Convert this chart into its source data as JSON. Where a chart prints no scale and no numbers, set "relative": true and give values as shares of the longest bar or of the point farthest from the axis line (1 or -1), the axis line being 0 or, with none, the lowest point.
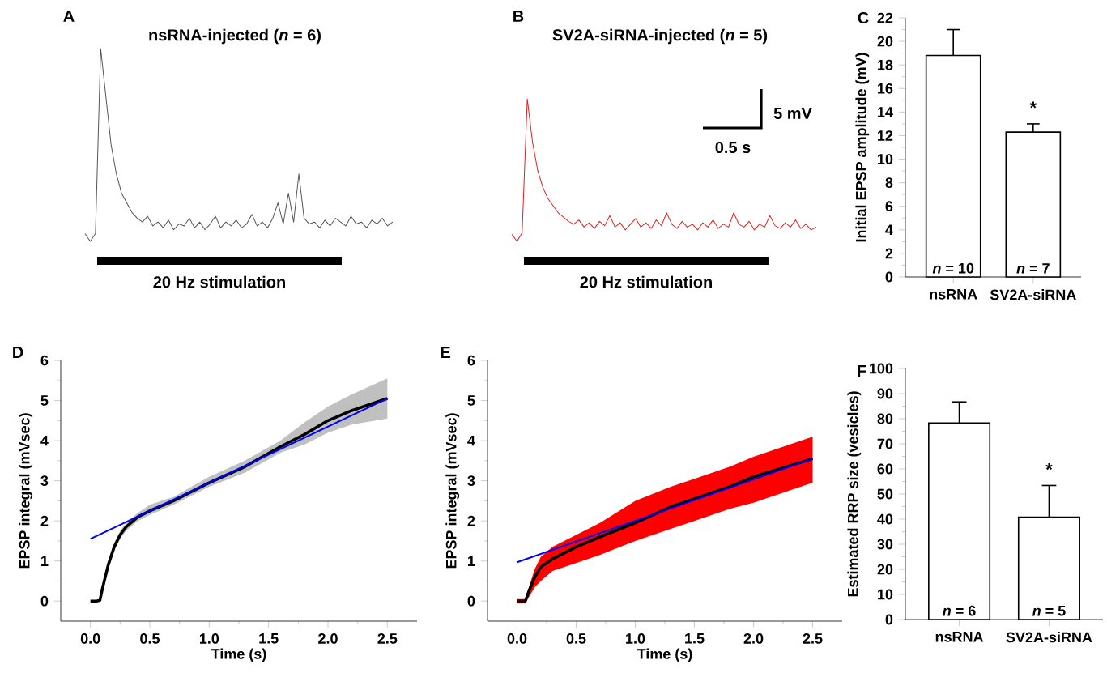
{
  "chart_data": [
    {
      "type": "line",
      "relative": true,
      "title": "nsRNA-injected (*n* = 6)",
      "color": "#555555",
      "annotations": [
        "A",
        "20 Hz stimulation"
      ],
      "categories": [
        null,
        null,
        null,
        null,
        null,
        null,
        null,
        null,
        null,
        null,
        null,
        null,
        null,
        null,
        null,
        null,
        null,
        null,
        null,
        null,
        null,
        null,
        null,
        null,
        null,
        null,
        null,
        null,
        null,
        null,
        null,
        null,
        null,
        null,
        null,
        null,
        null,
        null,
        null,
        null,
        null,
        null,
        null,
        null,
        null,
        null,
        null,
        null,
        null,
        null,
        null,
        null,
        null,
        null,
        null,
        null,
        null,
        null,
        null,
        null
      ],
      "values": [
        0.04,
        0.0,
        0.04,
        1.0,
        0.75,
        0.5,
        0.35,
        0.25,
        0.2,
        0.15,
        0.12,
        0.1,
        0.13,
        0.08,
        0.1,
        0.07,
        0.11,
        0.06,
        0.09,
        0.08,
        0.12,
        0.07,
        0.1,
        0.06,
        0.09,
        0.13,
        0.07,
        0.1,
        0.08,
        0.11,
        0.07,
        0.09,
        0.14,
        0.08,
        0.1,
        0.07,
        0.12,
        0.2,
        0.09,
        0.25,
        0.1,
        0.35,
        0.12,
        0.09,
        0.1,
        0.07,
        0.11,
        0.08,
        0.12,
        0.1,
        0.08,
        0.13,
        0.09,
        0.1,
        0.07,
        0.11,
        0.09,
        0.12,
        0.08,
        0.1
      ]
    },
    {
      "type": "line",
      "relative": true,
      "title": "SV2A-siRNA-injected (*n* = 5)",
      "color": "#e02020",
      "annotations": [
        "B",
        "20 Hz stimulation",
        "5 mV",
        "0.5 s"
      ],
      "categories": [
        null,
        null,
        null,
        null,
        null,
        null,
        null,
        null,
        null,
        null,
        null,
        null,
        null,
        null,
        null,
        null,
        null,
        null,
        null,
        null,
        null,
        null,
        null,
        null,
        null,
        null,
        null,
        null,
        null,
        null,
        null,
        null,
        null,
        null,
        null,
        null,
        null,
        null,
        null,
        null,
        null,
        null,
        null,
        null,
        null,
        null,
        null,
        null,
        null,
        null,
        null,
        null,
        null,
        null,
        null,
        null,
        null,
        null,
        null,
        null
      ],
      "values": [
        0.05,
        0.0,
        0.06,
        1.0,
        0.7,
        0.5,
        0.38,
        0.3,
        0.25,
        0.2,
        0.17,
        0.14,
        0.12,
        0.15,
        0.1,
        0.13,
        0.09,
        0.14,
        0.11,
        0.18,
        0.1,
        0.13,
        0.08,
        0.12,
        0.16,
        0.1,
        0.13,
        0.09,
        0.15,
        0.11,
        0.2,
        0.12,
        0.09,
        0.14,
        0.1,
        0.12,
        0.08,
        0.13,
        0.1,
        0.15,
        0.09,
        0.12,
        0.1,
        0.2,
        0.12,
        0.1,
        0.14,
        0.08,
        0.12,
        0.1,
        0.18,
        0.11,
        0.09,
        0.13,
        0.1,
        0.15,
        0.09,
        0.12,
        0.08,
        0.1
      ]
    },
    {
      "type": "bar",
      "categories": [
        "nsRNA",
        "SV2A-siRNA"
      ],
      "values": [
        18.8,
        12.3
      ],
      "color": "#ffffff",
      "errors": [
        [
          18.8,
          21.0
        ],
        [
          12.3,
          13.0
        ]
      ],
      "ylabel": "Initial EPSP amplitude (mV)",
      "ylim": [
        0,
        22
      ],
      "yticks": [
        0,
        2,
        4,
        6,
        8,
        10,
        12,
        14,
        16,
        18,
        20,
        22
      ],
      "annotations": [
        "C",
        "*n* = 10",
        "*n* = 7",
        "*"
      ]
    },
    {
      "type": "line",
      "xlabel": "Time (s)",
      "ylabel": "EPSP integral (mVsec)",
      "color": "#c0c0c0",
      "xlim": [
        -0.25,
        2.75
      ],
      "ylim": [
        -0.5,
        6
      ],
      "xticks": [
        {
          "value": 0,
          "label": "0.0"
        },
        0.5,
        {
          "value": 1,
          "label": "1.0"
        },
        1.5,
        {
          "value": 2,
          "label": "2.0"
        },
        2.5
      ],
      "yticks": [
        0,
        1,
        2,
        3,
        4,
        5,
        6
      ],
      "annotations": [
        "D"
      ],
      "series": [
        {
          "color": "#000000",
          "x": [
            0,
            0.05,
            0.08,
            0.1,
            0.15,
            0.2,
            0.25,
            0.3,
            0.4,
            0.5,
            0.7,
            1.0,
            1.3,
            1.6,
            1.8,
            2.0,
            2.2,
            2.5
          ],
          "values": [
            0,
            0,
            0.02,
            0.3,
            0.9,
            1.35,
            1.65,
            1.85,
            2.1,
            2.25,
            2.5,
            2.95,
            3.35,
            3.85,
            4.15,
            4.5,
            4.75,
            5.05
          ],
          "lower": [
            0,
            0,
            0,
            0.2,
            0.8,
            1.25,
            1.55,
            1.75,
            2.0,
            2.15,
            2.4,
            2.85,
            3.2,
            3.7,
            3.9,
            4.2,
            4.4,
            4.55
          ],
          "upper": [
            0,
            0,
            0.05,
            0.4,
            1.0,
            1.45,
            1.75,
            1.95,
            2.2,
            2.4,
            2.6,
            3.1,
            3.5,
            4.0,
            4.45,
            4.85,
            5.15,
            5.55
          ]
        },
        {
          "color": "#0000ff",
          "x": [
            0,
            2.5
          ],
          "values": [
            1.55,
            5.05
          ]
        }
      ]
    },
    {
      "type": "line",
      "xlabel": "Time (s)",
      "ylabel": "EPSP integral (mVsec)",
      "color": "#ff0000",
      "xlim": [
        -0.25,
        2.75
      ],
      "ylim": [
        -0.5,
        6
      ],
      "xticks": [
        {
          "value": 0,
          "label": "0.0"
        },
        0.5,
        {
          "value": 1,
          "label": "1.0"
        },
        1.5,
        {
          "value": 2,
          "label": "2.0"
        },
        2.5
      ],
      "yticks": [
        0,
        1,
        2,
        3,
        4,
        5,
        6
      ],
      "annotations": [
        "E"
      ],
      "series": [
        {
          "color": "#000000",
          "x": [
            0,
            0.07,
            0.1,
            0.15,
            0.2,
            0.3,
            0.5,
            0.7,
            1.0,
            1.3,
            1.5,
            1.8,
            2.0,
            2.5
          ],
          "values": [
            0,
            0,
            0.25,
            0.6,
            0.85,
            1.05,
            1.35,
            1.6,
            1.95,
            2.35,
            2.55,
            2.85,
            3.1,
            3.55
          ],
          "lower": [
            -0.05,
            -0.05,
            0.1,
            0.35,
            0.5,
            0.75,
            0.95,
            1.15,
            1.5,
            1.8,
            2.0,
            2.3,
            2.45,
            2.95
          ],
          "upper": [
            0.05,
            0.05,
            0.35,
            0.8,
            1.1,
            1.35,
            1.65,
            1.95,
            2.5,
            2.85,
            3.05,
            3.35,
            3.6,
            4.1
          ]
        },
        {
          "color": "#0000ff",
          "x": [
            0,
            2.5
          ],
          "values": [
            0.97,
            3.55
          ]
        }
      ]
    },
    {
      "type": "bar",
      "categories": [
        "nsRNA",
        "SV2A-siRNA"
      ],
      "values": [
        78.3,
        40.8
      ],
      "color": "#ffffff",
      "errors": [
        [
          78.3,
          86.7
        ],
        [
          40.8,
          53.4
        ]
      ],
      "ylabel": "Estimated RRP size (vesicles)",
      "ylim": [
        0,
        100
      ],
      "yticks": [
        0,
        10,
        20,
        30,
        40,
        50,
        60,
        70,
        80,
        90,
        100
      ],
      "annotations": [
        "F",
        "*n* = 6",
        "*n* = 5",
        "*"
      ]
    }
  ]
}
